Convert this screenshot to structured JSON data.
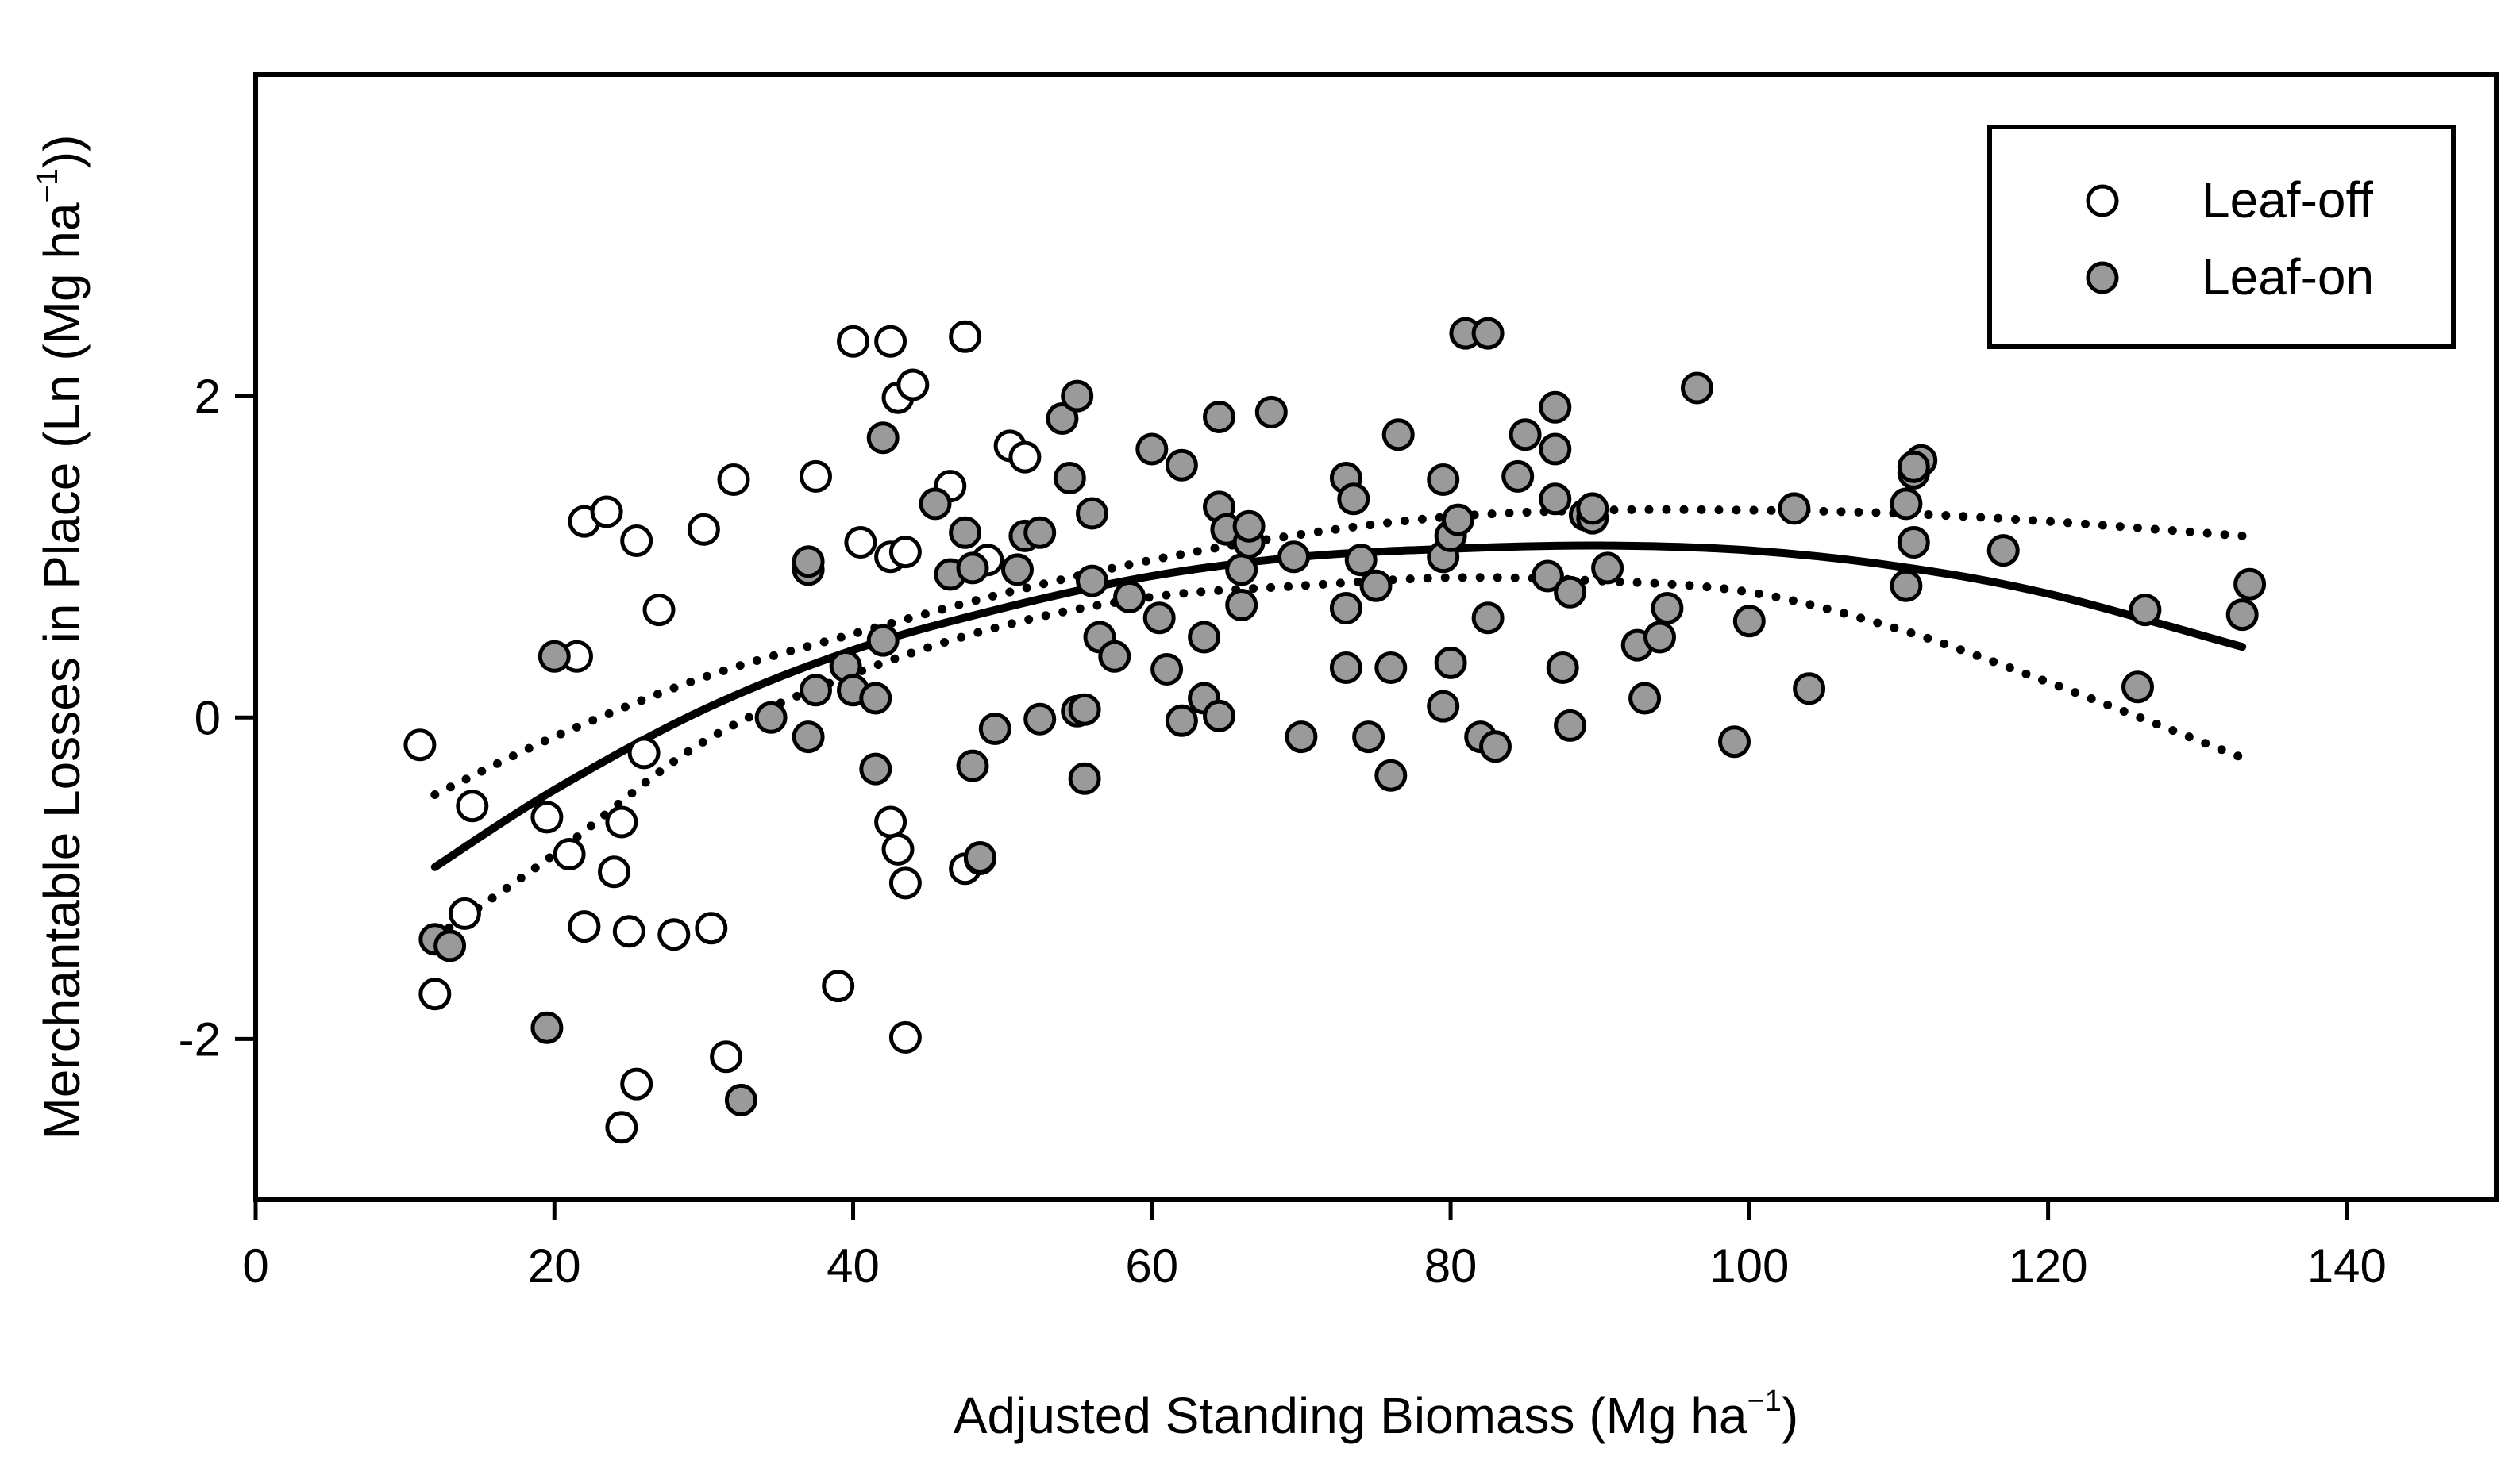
{
  "chart_data": {
    "type": "scatter",
    "title": "",
    "xlabel": "Adjusted Standing Biomass (Mg ha",
    "xlabel_sup": "−1",
    "xlabel_tail": ")",
    "ylabel": "Merchantable Losses in Place (Ln (Mg ha",
    "ylabel_sup": "−1",
    "ylabel_tail": "))",
    "xlim": [
      0,
      150
    ],
    "ylim": [
      -3,
      4
    ],
    "x_ticks": [
      0,
      20,
      40,
      60,
      80,
      100,
      120,
      140
    ],
    "x_tick_labels": [
      "0",
      "20",
      "40",
      "60",
      "80",
      "100",
      "120",
      "140"
    ],
    "y_ticks": [
      -2,
      0,
      2
    ],
    "y_tick_labels": [
      "-2",
      "0",
      "2"
    ],
    "grid": false,
    "legend_position": "top-right",
    "colors": {
      "leaf_off_fill": "#ffffff",
      "leaf_on_fill": "#9a9a9a",
      "stroke": "#000000"
    },
    "series": [
      {
        "name": "Leaf-off",
        "marker": "open-circle",
        "points": [
          [
            11,
            -0.17
          ],
          [
            12,
            -1.72
          ],
          [
            14,
            -1.22
          ],
          [
            14.5,
            -0.55
          ],
          [
            19.5,
            -0.62
          ],
          [
            21.5,
            0.38
          ],
          [
            21,
            -0.85
          ],
          [
            22,
            1.22
          ],
          [
            23.5,
            1.28
          ],
          [
            24,
            -0.96
          ],
          [
            24.5,
            -0.65
          ],
          [
            22,
            -1.3
          ],
          [
            25,
            -1.33
          ],
          [
            25.5,
            1.1
          ],
          [
            26,
            -0.22
          ],
          [
            27,
            0.67
          ],
          [
            28,
            -1.35
          ],
          [
            30,
            1.17
          ],
          [
            30.5,
            -1.31
          ],
          [
            32,
            1.48
          ],
          [
            31.5,
            -2.11
          ],
          [
            24.5,
            -2.55
          ],
          [
            25.5,
            -2.28
          ],
          [
            37.5,
            1.5
          ],
          [
            40,
            2.34
          ],
          [
            40.5,
            1.09
          ],
          [
            42.5,
            2.34
          ],
          [
            43,
            1.99
          ],
          [
            44,
            2.07
          ],
          [
            42.5,
            1.0
          ],
          [
            43.5,
            1.03
          ],
          [
            42.5,
            -0.65
          ],
          [
            43,
            -0.82
          ],
          [
            43.5,
            -1.03
          ],
          [
            39,
            -1.67
          ],
          [
            43.5,
            -1.99
          ],
          [
            46.5,
            1.44
          ],
          [
            47.5,
            2.37
          ],
          [
            49,
            0.98
          ],
          [
            50.5,
            1.69
          ],
          [
            51.5,
            1.62
          ],
          [
            47.5,
            -0.94
          ]
        ]
      },
      {
        "name": "Leaf-on",
        "marker": "filled-circle",
        "points": [
          [
            12,
            -1.38
          ],
          [
            13,
            -1.42
          ],
          [
            19.5,
            -1.93
          ],
          [
            20,
            0.38
          ],
          [
            32.5,
            -2.38
          ],
          [
            34.5,
            0.0
          ],
          [
            37,
            0.92
          ],
          [
            37,
            0.97
          ],
          [
            37,
            -0.12
          ],
          [
            37.5,
            0.17
          ],
          [
            39.5,
            0.32
          ],
          [
            40,
            0.17
          ],
          [
            41.5,
            0.12
          ],
          [
            41.5,
            -0.32
          ],
          [
            42,
            0.48
          ],
          [
            42,
            1.74
          ],
          [
            45.5,
            1.33
          ],
          [
            46.5,
            0.89
          ],
          [
            47.5,
            1.15
          ],
          [
            48,
            0.93
          ],
          [
            48,
            -0.3
          ],
          [
            48.5,
            -0.88
          ],
          [
            48.5,
            -0.87
          ],
          [
            49.5,
            -0.07
          ],
          [
            51,
            0.92
          ],
          [
            51.5,
            1.13
          ],
          [
            52.5,
            1.15
          ],
          [
            52.5,
            -0.01
          ],
          [
            54,
            1.86
          ],
          [
            54.5,
            1.49
          ],
          [
            55,
            2.0
          ],
          [
            55,
            0.04
          ],
          [
            55.5,
            0.05
          ],
          [
            55.5,
            -0.38
          ],
          [
            56,
            0.85
          ],
          [
            56,
            1.27
          ],
          [
            56.5,
            0.5
          ],
          [
            57.5,
            0.38
          ],
          [
            58.5,
            0.75
          ],
          [
            60,
            1.67
          ],
          [
            60.5,
            0.62
          ],
          [
            61,
            0.3
          ],
          [
            62,
            1.57
          ],
          [
            62,
            -0.02
          ],
          [
            63.5,
            0.5
          ],
          [
            63.5,
            0.12
          ],
          [
            64.5,
            1.31
          ],
          [
            64.5,
            1.87
          ],
          [
            64.5,
            0.01
          ],
          [
            65,
            1.17
          ],
          [
            66,
            0.92
          ],
          [
            66,
            0.7
          ],
          [
            66.5,
            1.09
          ],
          [
            66.5,
            1.19
          ],
          [
            68,
            1.9
          ],
          [
            69.5,
            1.0
          ],
          [
            70,
            -0.12
          ],
          [
            73,
            1.49
          ],
          [
            73,
            0.68
          ],
          [
            73,
            0.31
          ],
          [
            73.5,
            1.36
          ],
          [
            74,
            0.98
          ],
          [
            74.5,
            -0.12
          ],
          [
            75,
            0.82
          ],
          [
            76,
            0.31
          ],
          [
            76,
            -0.36
          ],
          [
            76.5,
            1.76
          ],
          [
            79.5,
            0.07
          ],
          [
            79.5,
            1.48
          ],
          [
            79.5,
            1.0
          ],
          [
            80,
            1.13
          ],
          [
            80,
            0.34
          ],
          [
            80.5,
            1.23
          ],
          [
            81,
            2.39
          ],
          [
            82,
            -0.12
          ],
          [
            82.5,
            2.39
          ],
          [
            82.5,
            0.62
          ],
          [
            83,
            -0.18
          ],
          [
            84.5,
            1.5
          ],
          [
            85,
            1.76
          ],
          [
            86.5,
            0.88
          ],
          [
            87,
            1.93
          ],
          [
            87,
            1.67
          ],
          [
            87,
            1.36
          ],
          [
            87.5,
            0.31
          ],
          [
            88,
            0.78
          ],
          [
            88,
            -0.05
          ],
          [
            89,
            1.26
          ],
          [
            89.5,
            1.24
          ],
          [
            89.5,
            1.3
          ],
          [
            90.5,
            0.93
          ],
          [
            92.5,
            0.45
          ],
          [
            93,
            0.12
          ],
          [
            94,
            0.5
          ],
          [
            94.5,
            0.68
          ],
          [
            96.5,
            2.05
          ],
          [
            99,
            -0.15
          ],
          [
            100,
            0.6
          ],
          [
            103,
            1.3
          ],
          [
            104,
            0.18
          ],
          [
            110.5,
            1.33
          ],
          [
            110.5,
            0.82
          ],
          [
            111,
            1.09
          ],
          [
            111,
            1.52
          ],
          [
            111.5,
            1.6
          ],
          [
            111,
            1.56
          ],
          [
            117,
            1.04
          ],
          [
            126,
            0.19
          ],
          [
            126.5,
            0.67
          ],
          [
            133,
            0.64
          ],
          [
            133.5,
            0.83
          ]
        ]
      }
    ],
    "fit": {
      "fit_line": [
        [
          12,
          -0.93
        ],
        [
          20,
          -0.45
        ],
        [
          30,
          0.05
        ],
        [
          40,
          0.42
        ],
        [
          50,
          0.68
        ],
        [
          60,
          0.88
        ],
        [
          70,
          1.0
        ],
        [
          80,
          1.05
        ],
        [
          90,
          1.07
        ],
        [
          100,
          1.04
        ],
        [
          110,
          0.94
        ],
        [
          120,
          0.77
        ],
        [
          133,
          0.44
        ]
      ],
      "upper_band": [
        [
          12,
          -0.48
        ],
        [
          20,
          -0.12
        ],
        [
          30,
          0.25
        ],
        [
          40,
          0.52
        ],
        [
          50,
          0.77
        ],
        [
          60,
          0.98
        ],
        [
          70,
          1.14
        ],
        [
          80,
          1.25
        ],
        [
          90,
          1.29
        ],
        [
          100,
          1.29
        ],
        [
          110,
          1.27
        ],
        [
          120,
          1.22
        ],
        [
          133,
          1.13
        ]
      ],
      "lower_band": [
        [
          12,
          -1.37
        ],
        [
          20,
          -0.85
        ],
        [
          30,
          -0.15
        ],
        [
          40,
          0.27
        ],
        [
          50,
          0.57
        ],
        [
          60,
          0.75
        ],
        [
          70,
          0.82
        ],
        [
          80,
          0.87
        ],
        [
          90,
          0.85
        ],
        [
          100,
          0.78
        ],
        [
          110,
          0.55
        ],
        [
          120,
          0.22
        ],
        [
          133,
          -0.25
        ]
      ]
    }
  }
}
